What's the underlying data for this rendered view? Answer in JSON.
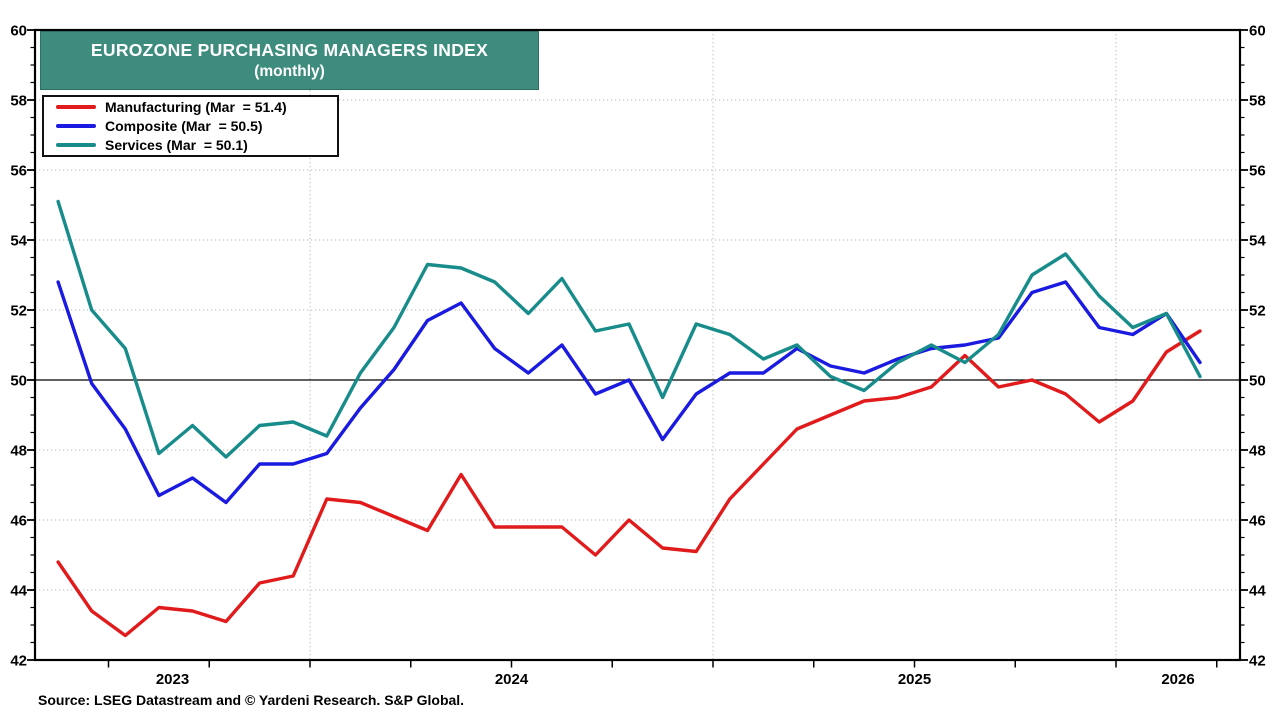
{
  "title": {
    "line1": "EUROZONE PURCHASING MANAGERS INDEX",
    "line2": "(monthly)"
  },
  "legend": [
    {
      "label": "Manufacturing (Mar  = 51.4)",
      "color": "#e11b1b"
    },
    {
      "label": "Composite (Mar  = 50.5)",
      "color": "#1a1ae0"
    },
    {
      "label": "Services (Mar  = 50.1)",
      "color": "#178c8a"
    }
  ],
  "source": "Source: LSEG Datastream and © Yardeni Research. S&P Global.",
  "colors": {
    "title_band": "#3e8c7e",
    "grid_dotted": "#c4c4c4",
    "reference_line": "#000000",
    "frame": "#000000"
  },
  "chart_data": {
    "type": "line",
    "title": "EUROZONE PURCHASING MANAGERS INDEX (monthly)",
    "ylim": [
      42,
      60
    ],
    "y_ticks": [
      42,
      44,
      46,
      48,
      50,
      52,
      54,
      56,
      58,
      60
    ],
    "reference_line": 50,
    "grid": "dotted horizontal every 2 units; dotted vertical at year boundaries",
    "legend_position": "top-left",
    "x_year_labels": [
      "2023",
      "2024",
      "2025",
      "2026"
    ],
    "x_start_month": "May-2023",
    "x_end_month": "Mar-2026",
    "months": [
      "May-2023",
      "Jun-2023",
      "Jul-2023",
      "Aug-2023",
      "Sep-2023",
      "Oct-2023",
      "Nov-2023",
      "Dec-2023",
      "Jan-2024",
      "Feb-2024",
      "Mar-2024",
      "Apr-2024",
      "May-2024",
      "Jun-2024",
      "Jul-2024",
      "Aug-2024",
      "Sep-2024",
      "Oct-2024",
      "Nov-2024",
      "Dec-2024",
      "Jan-2025",
      "Feb-2025",
      "Mar-2025",
      "Apr-2025",
      "May-2025",
      "Jun-2025",
      "Jul-2025",
      "Aug-2025",
      "Sep-2025",
      "Oct-2025",
      "Nov-2025",
      "Dec-2025",
      "Jan-2026",
      "Feb-2026",
      "Mar-2026"
    ],
    "series": [
      {
        "name": "Manufacturing",
        "color": "#e11b1b",
        "latest_label": "Mar = 51.4",
        "values": [
          44.8,
          43.4,
          42.7,
          43.5,
          43.4,
          43.1,
          44.2,
          44.4,
          46.6,
          46.5,
          46.1,
          45.7,
          47.3,
          45.8,
          45.8,
          45.8,
          45.0,
          46.0,
          45.2,
          45.1,
          46.6,
          47.6,
          48.6,
          49.0,
          49.4,
          49.5,
          49.8,
          50.7,
          49.8,
          50.0,
          49.6,
          48.8,
          49.4,
          50.8,
          51.4
        ]
      },
      {
        "name": "Composite",
        "color": "#1a1ae0",
        "latest_label": "Mar = 50.5",
        "values": [
          52.8,
          49.9,
          48.6,
          46.7,
          47.2,
          46.5,
          47.6,
          47.6,
          47.9,
          49.2,
          50.3,
          51.7,
          52.2,
          50.9,
          50.2,
          51.0,
          49.6,
          50.0,
          48.3,
          49.6,
          50.2,
          50.2,
          50.9,
          50.4,
          50.2,
          50.6,
          50.9,
          51.0,
          51.2,
          52.5,
          52.8,
          51.5,
          51.3,
          51.9,
          50.5
        ]
      },
      {
        "name": "Services",
        "color": "#178c8a",
        "latest_label": "Mar = 50.1",
        "values": [
          55.1,
          52.0,
          50.9,
          47.9,
          48.7,
          47.8,
          48.7,
          48.8,
          48.4,
          50.2,
          51.5,
          53.3,
          53.2,
          52.8,
          51.9,
          52.9,
          51.4,
          51.6,
          49.5,
          51.6,
          51.3,
          50.6,
          51.0,
          50.1,
          49.7,
          50.5,
          51.0,
          50.5,
          51.3,
          53.0,
          53.6,
          52.4,
          51.5,
          51.9,
          50.1
        ]
      }
    ]
  }
}
